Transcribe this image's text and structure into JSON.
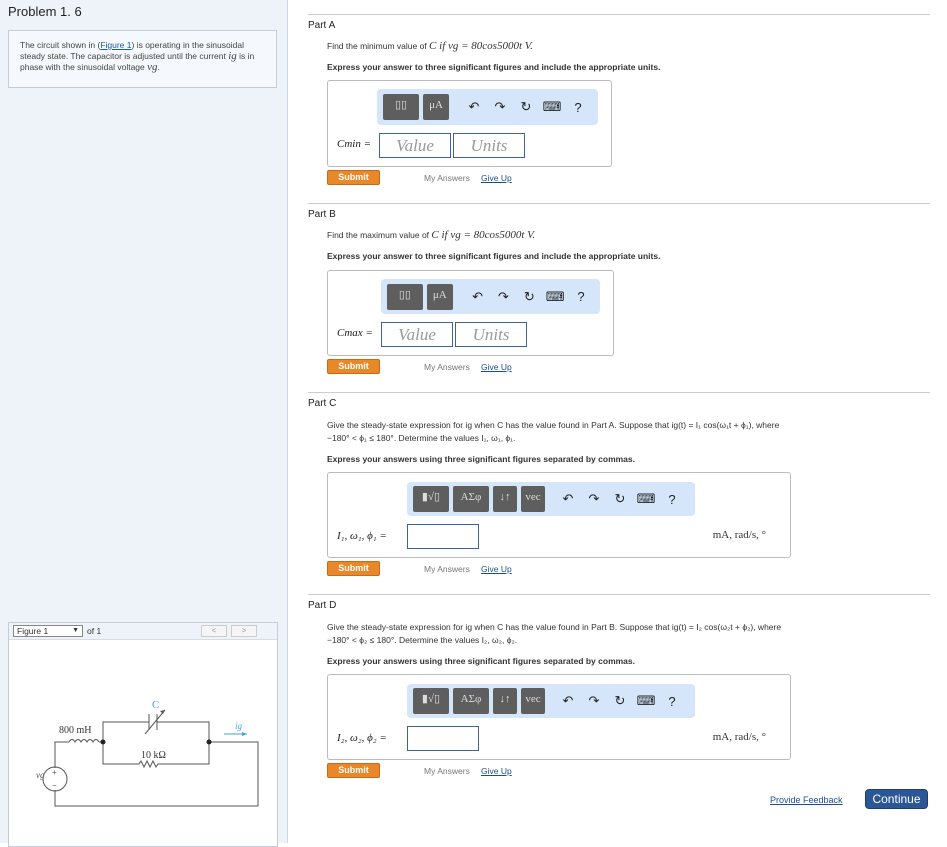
{
  "problem": {
    "title": "Problem 1. 6",
    "intro_pre": "The circuit shown in (",
    "figure_link": "Figure 1",
    "intro_post": ") is operating in the sinusoidal steady state. The capacitor is adjusted until the current ",
    "ig": "ig",
    "intro_mid": " is in phase with the sinusoidal voltage ",
    "vg": "vg",
    "intro_end": "."
  },
  "figure": {
    "select": "Figure 1",
    "of": "of 1",
    "prev": "<",
    "next": ">",
    "labels": {
      "inductor": "800 mH",
      "resistor": "10 kΩ",
      "capacitor": "C",
      "current": "ig",
      "source": "vg",
      "plus": "+",
      "minus": "−"
    }
  },
  "parts": [
    {
      "label": "Part A",
      "q_pre": "Find the minimum value of ",
      "q_math": "C if vg = 80cos5000t V.",
      "instr": "Express your answer to three significant figures and include the appropriate units.",
      "var": "Cmin =",
      "value_ph": "Value",
      "units_ph": "Units",
      "submit": "Submit",
      "my_answers": "My Answers",
      "give_up": "Give Up",
      "toolbar": [
        "▯▯",
        "μA",
        "↶",
        "↷",
        "↻",
        "⌨",
        "?"
      ]
    },
    {
      "label": "Part B",
      "q_pre": "Find the maximum value of ",
      "q_math": "C if vg = 80cos5000t V.",
      "instr": "Express your answer to three significant figures and include the appropriate units.",
      "var": "Cmax =",
      "value_ph": "Value",
      "units_ph": "Units",
      "submit": "Submit",
      "my_answers": "My Answers",
      "give_up": "Give Up",
      "toolbar": [
        "▯▯",
        "μA",
        "↶",
        "↷",
        "↻",
        "⌨",
        "?"
      ]
    },
    {
      "label": "Part C",
      "q1": "Give the steady-state expression for ig when C has the value found in Part A. Suppose that ig(t) = I₁ cos(ω₁t + ϕ₁), where",
      "q2": "−180° < ϕ₁ ≤ 180°. Determine the values I₁, ω₁, ϕ₁.",
      "instr": "Express your answers using three significant figures separated by commas.",
      "var": "I₁, ω₁, ϕ₁ =",
      "units": "mA, rad/s, °",
      "submit": "Submit",
      "my_answers": "My Answers",
      "give_up": "Give Up",
      "toolbar": [
        "▮√▯",
        "ΑΣφ",
        "↓↑",
        "vec",
        "↶",
        "↷",
        "↻",
        "⌨",
        "?"
      ]
    },
    {
      "label": "Part D",
      "q1": "Give the steady-state expression for ig when C has the value found in Part B. Suppose that ig(t) = I₂ cos(ω₂t + ϕ₂), where",
      "q2": "−180° < ϕ₂ ≤ 180°. Determine the values I₂, ω₂, ϕ₂.",
      "instr": "Express your answers using three significant figures separated by commas.",
      "var": "I₂, ω₂, ϕ₂ =",
      "units": "mA, rad/s, °",
      "submit": "Submit",
      "my_answers": "My Answers",
      "give_up": "Give Up",
      "toolbar": [
        "▮√▯",
        "ΑΣφ",
        "↓↑",
        "vec",
        "↶",
        "↷",
        "↻",
        "⌨",
        "?"
      ]
    }
  ],
  "footer": {
    "feedback": "Provide Feedback",
    "continue": "Continue"
  },
  "colors": {
    "submit": "#e8882a",
    "continue": "#2b5797",
    "toolbar": "#d5e6fa",
    "link": "#1a4f8e"
  }
}
